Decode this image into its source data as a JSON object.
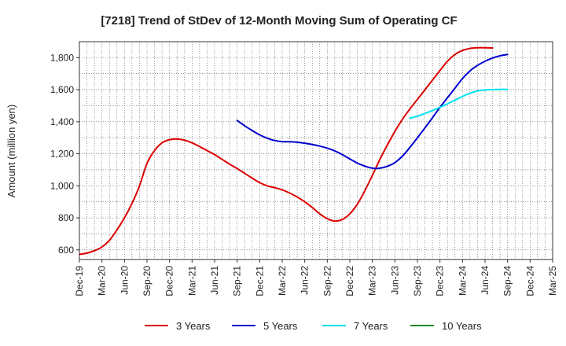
{
  "chart_data": {
    "type": "line",
    "title": "[7218]  Trend of StDev of 12-Month Moving Sum of Operating CF",
    "xlabel": "",
    "ylabel": "Amount (million yen)",
    "x_tick_labels": [
      "Dec-19",
      "Mar-20",
      "Jun-20",
      "Sep-20",
      "Dec-20",
      "Mar-21",
      "Jun-21",
      "Sep-21",
      "Dec-21",
      "Mar-22",
      "Jun-22",
      "Sep-22",
      "Dec-22",
      "Mar-23",
      "Jun-23",
      "Sep-23",
      "Dec-23",
      "Mar-24",
      "Jun-24",
      "Sep-24",
      "Dec-24",
      "Mar-25"
    ],
    "y_ticks": [
      600,
      800,
      1000,
      1200,
      1400,
      1600,
      1800
    ],
    "y_tick_labels": [
      "600",
      "800",
      "1,000",
      "1,200",
      "1,400",
      "1,600",
      "1,800"
    ],
    "ylim": [
      540,
      1900
    ],
    "grid": true,
    "legend_position": "bottom",
    "series": [
      {
        "name": "3 Years",
        "color": "#dd0000",
        "values": [
          [
            0,
            572
          ],
          [
            1,
            580
          ],
          [
            2,
            595
          ],
          [
            3,
            618
          ],
          [
            4,
            660
          ],
          [
            5,
            725
          ],
          [
            6,
            800
          ],
          [
            7,
            890
          ],
          [
            8,
            1000
          ],
          [
            9,
            1140
          ],
          [
            10,
            1220
          ],
          [
            11,
            1268
          ],
          [
            12,
            1288
          ],
          [
            13,
            1292
          ],
          [
            14,
            1285
          ],
          [
            15,
            1268
          ],
          [
            16,
            1245
          ],
          [
            17,
            1220
          ],
          [
            18,
            1195
          ],
          [
            19,
            1165
          ],
          [
            20,
            1135
          ],
          [
            21,
            1108
          ],
          [
            22,
            1078
          ],
          [
            23,
            1048
          ],
          [
            24,
            1020
          ],
          [
            25,
            1000
          ],
          [
            26,
            988
          ],
          [
            27,
            975
          ],
          [
            28,
            955
          ],
          [
            29,
            930
          ],
          [
            30,
            900
          ],
          [
            31,
            865
          ],
          [
            32,
            825
          ],
          [
            33,
            795
          ],
          [
            34,
            780
          ],
          [
            35,
            790
          ],
          [
            36,
            825
          ],
          [
            37,
            885
          ],
          [
            38,
            970
          ],
          [
            39,
            1065
          ],
          [
            40,
            1165
          ],
          [
            41,
            1255
          ],
          [
            42,
            1340
          ],
          [
            43,
            1415
          ],
          [
            44,
            1480
          ],
          [
            45,
            1540
          ],
          [
            46,
            1600
          ],
          [
            47,
            1660
          ],
          [
            48,
            1720
          ],
          [
            49,
            1778
          ],
          [
            50,
            1820
          ],
          [
            51,
            1845
          ],
          [
            52,
            1858
          ],
          [
            53,
            1862
          ],
          [
            54,
            1862
          ],
          [
            55,
            1861
          ]
        ]
      },
      {
        "name": "5 Years",
        "color": "#0000cc",
        "values": [
          [
            21,
            1408
          ],
          [
            22,
            1375
          ],
          [
            23,
            1345
          ],
          [
            24,
            1318
          ],
          [
            25,
            1297
          ],
          [
            26,
            1283
          ],
          [
            27,
            1276
          ],
          [
            28,
            1275
          ],
          [
            29,
            1272
          ],
          [
            30,
            1266
          ],
          [
            31,
            1258
          ],
          [
            32,
            1248
          ],
          [
            33,
            1235
          ],
          [
            34,
            1218
          ],
          [
            35,
            1195
          ],
          [
            36,
            1168
          ],
          [
            37,
            1142
          ],
          [
            38,
            1123
          ],
          [
            39,
            1110
          ],
          [
            40,
            1110
          ],
          [
            41,
            1122
          ],
          [
            42,
            1145
          ],
          [
            43,
            1185
          ],
          [
            44,
            1240
          ],
          [
            45,
            1300
          ],
          [
            46,
            1362
          ],
          [
            47,
            1425
          ],
          [
            48,
            1490
          ],
          [
            49,
            1550
          ],
          [
            50,
            1610
          ],
          [
            51,
            1670
          ],
          [
            52,
            1718
          ],
          [
            53,
            1752
          ],
          [
            54,
            1778
          ],
          [
            55,
            1798
          ],
          [
            56,
            1812
          ],
          [
            57,
            1820
          ]
        ]
      },
      {
        "name": "7 Years",
        "color": "#00e0f0",
        "values": [
          [
            44,
            1422
          ],
          [
            45,
            1435
          ],
          [
            46,
            1452
          ],
          [
            47,
            1470
          ],
          [
            48,
            1490
          ],
          [
            49,
            1512
          ],
          [
            50,
            1535
          ],
          [
            51,
            1558
          ],
          [
            52,
            1578
          ],
          [
            53,
            1592
          ],
          [
            54,
            1598
          ],
          [
            55,
            1601
          ],
          [
            56,
            1602
          ],
          [
            57,
            1602
          ]
        ]
      },
      {
        "name": "10 Years",
        "color": "#228b22",
        "values": []
      }
    ]
  }
}
